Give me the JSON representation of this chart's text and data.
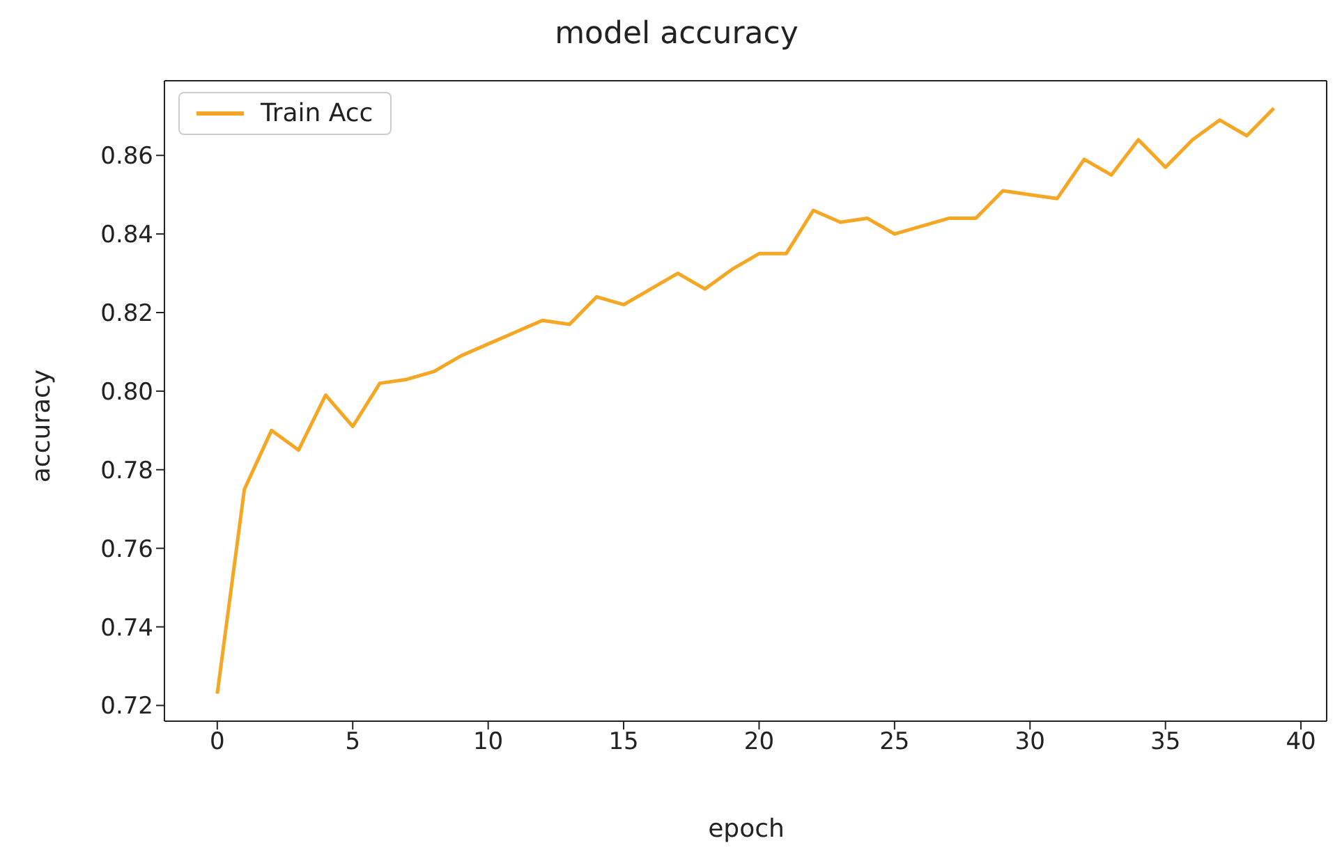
{
  "chart_data": {
    "type": "line",
    "title": "model accuracy",
    "xlabel": "epoch",
    "ylabel": "accuracy",
    "x": [
      0,
      1,
      2,
      3,
      4,
      5,
      6,
      7,
      8,
      9,
      10,
      11,
      12,
      13,
      14,
      15,
      16,
      17,
      18,
      19,
      20,
      21,
      22,
      23,
      24,
      25,
      26,
      27,
      28,
      29,
      30,
      31,
      32,
      33,
      34,
      35,
      36,
      37,
      38,
      39
    ],
    "series": [
      {
        "name": "Train Acc",
        "color": "#f5a623",
        "values": [
          0.723,
          0.775,
          0.79,
          0.785,
          0.799,
          0.791,
          0.802,
          0.803,
          0.805,
          0.809,
          0.812,
          0.815,
          0.818,
          0.817,
          0.824,
          0.822,
          0.826,
          0.83,
          0.826,
          0.831,
          0.835,
          0.835,
          0.846,
          0.843,
          0.844,
          0.84,
          0.842,
          0.844,
          0.844,
          0.851,
          0.85,
          0.849,
          0.859,
          0.855,
          0.864,
          0.857,
          0.864,
          0.869,
          0.865,
          0.872
        ]
      }
    ],
    "xlim": [
      -1.95,
      40.95
    ],
    "xticks": [
      0,
      5,
      10,
      15,
      20,
      25,
      30,
      35,
      40
    ],
    "ylim": [
      0.716,
      0.879
    ],
    "yticks": [
      {
        "value": 0.72,
        "label": "0.72"
      },
      {
        "value": 0.74,
        "label": "0.74"
      },
      {
        "value": 0.76,
        "label": "0.76"
      },
      {
        "value": 0.78,
        "label": "0.78"
      },
      {
        "value": 0.8,
        "label": "0.80"
      },
      {
        "value": 0.82,
        "label": "0.82"
      },
      {
        "value": 0.84,
        "label": "0.84"
      },
      {
        "value": 0.86,
        "label": "0.86"
      }
    ],
    "grid": false,
    "legend": "top left",
    "marker": "none",
    "line_style": "solid"
  }
}
